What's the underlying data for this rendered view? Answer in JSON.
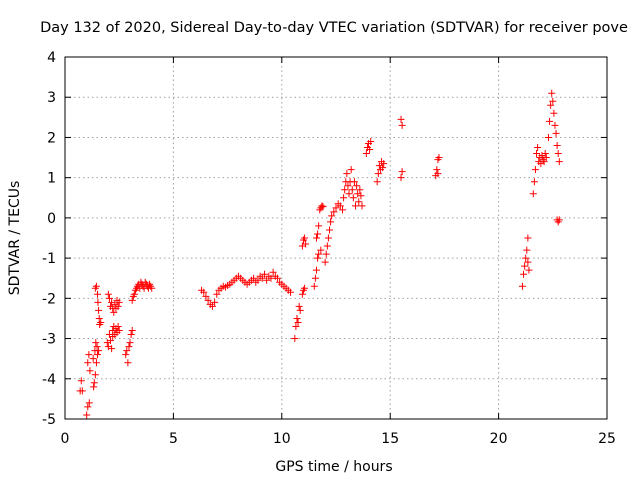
{
  "chart_data": {
    "type": "scatter",
    "title": "Day 132 of 2020, Sidereal Day-to-day VTEC variation (SDTVAR) for receiver pove",
    "xlabel": "GPS time / hours",
    "ylabel": "SDTVAR / TECUs",
    "xlim": [
      0,
      25
    ],
    "ylim": [
      -5,
      4
    ],
    "grid": true,
    "marker": "+",
    "color": "#ff0000",
    "xticks": [
      0,
      5,
      10,
      15,
      20,
      25
    ],
    "yticks": [
      -5,
      -4,
      -3,
      -2,
      -1,
      0,
      1,
      2,
      3,
      4
    ],
    "series": [
      {
        "name": "SDTVAR",
        "segments": [
          [
            [
              0.7,
              -4.3
            ],
            [
              0.75,
              -4.05
            ],
            [
              0.8,
              -4.3
            ]
          ],
          [
            [
              1.0,
              -4.9
            ],
            [
              1.05,
              -4.7
            ],
            [
              1.05,
              -3.6
            ],
            [
              1.1,
              -3.4
            ],
            [
              1.12,
              -4.6
            ],
            [
              1.15,
              -3.8
            ]
          ],
          [
            [
              1.3,
              -3.5
            ],
            [
              1.32,
              -4.2
            ],
            [
              1.35,
              -4.1
            ],
            [
              1.38,
              -3.3
            ],
            [
              1.4,
              -3.9
            ],
            [
              1.42,
              -3.1
            ],
            [
              1.45,
              -3.6
            ],
            [
              1.48,
              -3.2
            ],
            [
              1.5,
              -3.4
            ],
            [
              1.55,
              -3.3
            ]
          ],
          [
            [
              1.4,
              -1.75
            ],
            [
              1.45,
              -1.7
            ],
            [
              1.5,
              -1.9
            ],
            [
              1.52,
              -2.1
            ],
            [
              1.55,
              -2.3
            ],
            [
              1.58,
              -2.5
            ],
            [
              1.6,
              -2.65
            ],
            [
              1.65,
              -2.6
            ]
          ],
          [
            [
              1.95,
              -3.1
            ],
            [
              2.0,
              -3.2
            ],
            [
              2.05,
              -2.9
            ],
            [
              2.1,
              -3.05
            ],
            [
              2.15,
              -3.25
            ],
            [
              2.2,
              -2.95
            ]
          ],
          [
            [
              2.0,
              -1.9
            ],
            [
              2.05,
              -2.0
            ],
            [
              2.1,
              -2.2
            ],
            [
              2.15,
              -2.1
            ],
            [
              2.2,
              -2.25
            ],
            [
              2.25,
              -2.35
            ],
            [
              2.3,
              -2.15
            ],
            [
              2.35,
              -2.25
            ],
            [
              2.4,
              -2.05
            ],
            [
              2.45,
              -2.2
            ],
            [
              2.5,
              -2.1
            ]
          ],
          [
            [
              2.2,
              -2.8
            ],
            [
              2.25,
              -2.7
            ],
            [
              2.3,
              -2.9
            ],
            [
              2.35,
              -2.75
            ],
            [
              2.4,
              -2.85
            ],
            [
              2.45,
              -2.7
            ],
            [
              2.5,
              -2.8
            ]
          ],
          [
            [
              2.8,
              -3.4
            ],
            [
              2.85,
              -3.3
            ],
            [
              2.9,
              -3.6
            ],
            [
              2.95,
              -3.2
            ],
            [
              3.0,
              -3.1
            ],
            [
              3.05,
              -2.9
            ],
            [
              3.1,
              -2.8
            ]
          ],
          [
            [
              3.1,
              -2.05
            ],
            [
              3.15,
              -1.95
            ],
            [
              3.2,
              -1.9
            ],
            [
              3.25,
              -1.8
            ],
            [
              3.3,
              -1.75
            ],
            [
              3.35,
              -1.7
            ],
            [
              3.4,
              -1.65
            ],
            [
              3.45,
              -1.75
            ],
            [
              3.5,
              -1.6
            ],
            [
              3.55,
              -1.65
            ],
            [
              3.6,
              -1.7
            ],
            [
              3.65,
              -1.75
            ],
            [
              3.7,
              -1.6
            ],
            [
              3.75,
              -1.65
            ],
            [
              3.8,
              -1.7
            ],
            [
              3.85,
              -1.75
            ],
            [
              3.9,
              -1.65
            ],
            [
              3.95,
              -1.7
            ],
            [
              4.0,
              -1.75
            ]
          ],
          [
            [
              6.3,
              -1.8
            ],
            [
              6.4,
              -1.85
            ],
            [
              6.5,
              -1.95
            ],
            [
              6.6,
              -2.05
            ],
            [
              6.7,
              -2.15
            ],
            [
              6.8,
              -2.2
            ],
            [
              6.9,
              -2.1
            ],
            [
              7.0,
              -1.9
            ],
            [
              7.1,
              -1.8
            ],
            [
              7.2,
              -1.75
            ],
            [
              7.3,
              -1.7
            ],
            [
              7.4,
              -1.72
            ],
            [
              7.5,
              -1.68
            ],
            [
              7.6,
              -1.65
            ],
            [
              7.7,
              -1.6
            ],
            [
              7.8,
              -1.55
            ],
            [
              7.9,
              -1.5
            ],
            [
              8.0,
              -1.45
            ],
            [
              8.1,
              -1.5
            ],
            [
              8.2,
              -1.55
            ],
            [
              8.3,
              -1.6
            ],
            [
              8.4,
              -1.65
            ],
            [
              8.5,
              -1.6
            ],
            [
              8.6,
              -1.55
            ],
            [
              8.7,
              -1.5
            ],
            [
              8.8,
              -1.6
            ],
            [
              8.9,
              -1.55
            ],
            [
              9.0,
              -1.45
            ],
            [
              9.1,
              -1.5
            ],
            [
              9.2,
              -1.4
            ],
            [
              9.3,
              -1.55
            ],
            [
              9.4,
              -1.45
            ],
            [
              9.5,
              -1.5
            ],
            [
              9.6,
              -1.35
            ],
            [
              9.7,
              -1.45
            ],
            [
              9.8,
              -1.5
            ],
            [
              9.9,
              -1.6
            ],
            [
              10.0,
              -1.65
            ],
            [
              10.1,
              -1.7
            ],
            [
              10.2,
              -1.75
            ],
            [
              10.3,
              -1.8
            ],
            [
              10.4,
              -1.85
            ]
          ],
          [
            [
              10.6,
              -3.0
            ],
            [
              10.65,
              -2.7
            ],
            [
              10.7,
              -2.5
            ],
            [
              10.75,
              -2.6
            ],
            [
              10.8,
              -2.2
            ],
            [
              10.85,
              -2.3
            ]
          ],
          [
            [
              10.95,
              -1.9
            ],
            [
              11.0,
              -1.8
            ],
            [
              11.05,
              -1.75
            ]
          ],
          [
            [
              10.95,
              -0.7
            ],
            [
              11.0,
              -0.55
            ],
            [
              11.05,
              -0.5
            ],
            [
              11.1,
              -0.65
            ]
          ],
          [
            [
              11.5,
              -1.7
            ],
            [
              11.55,
              -1.5
            ],
            [
              11.6,
              -1.3
            ],
            [
              11.65,
              -1.0
            ],
            [
              11.7,
              -0.9
            ],
            [
              11.8,
              -0.8
            ]
          ],
          [
            [
              11.6,
              -0.5
            ],
            [
              11.65,
              -0.4
            ],
            [
              11.7,
              -0.2
            ],
            [
              11.75,
              0.2
            ],
            [
              11.8,
              0.25
            ],
            [
              11.85,
              0.3
            ],
            [
              11.9,
              0.28
            ]
          ],
          [
            [
              12.0,
              -1.1
            ],
            [
              12.05,
              -0.9
            ],
            [
              12.1,
              -0.7
            ],
            [
              12.15,
              -0.5
            ],
            [
              12.2,
              -0.3
            ],
            [
              12.25,
              -0.1
            ],
            [
              12.3,
              0.05
            ],
            [
              12.4,
              0.15
            ],
            [
              12.5,
              0.25
            ],
            [
              12.6,
              0.35
            ],
            [
              12.7,
              0.3
            ]
          ],
          [
            [
              12.8,
              0.2
            ],
            [
              12.85,
              0.5
            ],
            [
              12.9,
              0.7
            ],
            [
              12.95,
              0.9
            ],
            [
              13.0,
              1.1
            ],
            [
              13.05,
              0.8
            ],
            [
              13.1,
              0.6
            ],
            [
              13.15,
              0.9
            ],
            [
              13.2,
              1.2
            ],
            [
              13.25,
              0.7
            ],
            [
              13.3,
              0.5
            ],
            [
              13.35,
              0.9
            ],
            [
              13.4,
              0.3
            ],
            [
              13.45,
              0.8
            ],
            [
              13.5,
              0.6
            ],
            [
              13.55,
              0.4
            ],
            [
              13.6,
              0.7
            ],
            [
              13.65,
              0.55
            ],
            [
              13.7,
              0.3
            ]
          ],
          [
            [
              13.9,
              1.6
            ],
            [
              13.95,
              1.75
            ],
            [
              14.0,
              1.85
            ],
            [
              14.05,
              1.7
            ],
            [
              14.1,
              1.9
            ]
          ],
          [
            [
              14.4,
              0.9
            ],
            [
              14.45,
              1.1
            ],
            [
              14.5,
              1.3
            ],
            [
              14.55,
              1.2
            ],
            [
              14.6,
              1.4
            ],
            [
              14.65,
              1.25
            ],
            [
              14.7,
              1.35
            ]
          ],
          [
            [
              15.5,
              2.45
            ],
            [
              15.55,
              2.3
            ],
            [
              15.5,
              1.0
            ],
            [
              15.55,
              1.15
            ]
          ],
          [
            [
              17.1,
              1.05
            ],
            [
              17.15,
              1.2
            ],
            [
              17.2,
              1.45
            ],
            [
              17.25,
              1.5
            ],
            [
              17.2,
              1.1
            ]
          ],
          [
            [
              21.1,
              -1.7
            ],
            [
              21.15,
              -1.4
            ],
            [
              21.2,
              -1.2
            ],
            [
              21.25,
              -1.0
            ],
            [
              21.3,
              -0.8
            ],
            [
              21.35,
              -0.5
            ],
            [
              21.4,
              -1.3
            ],
            [
              21.35,
              -1.1
            ]
          ],
          [
            [
              21.6,
              0.6
            ],
            [
              21.65,
              0.9
            ],
            [
              21.7,
              1.2
            ],
            [
              21.75,
              1.6
            ],
            [
              21.8,
              1.75
            ],
            [
              21.85,
              1.4
            ],
            [
              21.9,
              1.5
            ],
            [
              21.95,
              1.35
            ],
            [
              22.0,
              1.55
            ],
            [
              22.05,
              1.45
            ],
            [
              22.1,
              1.4
            ],
            [
              22.15,
              1.6
            ],
            [
              22.2,
              1.5
            ]
          ],
          [
            [
              22.3,
              2.0
            ],
            [
              22.35,
              2.4
            ],
            [
              22.4,
              2.8
            ],
            [
              22.45,
              3.1
            ],
            [
              22.5,
              2.9
            ],
            [
              22.55,
              2.6
            ],
            [
              22.6,
              2.3
            ],
            [
              22.65,
              2.1
            ],
            [
              22.7,
              1.8
            ],
            [
              22.75,
              1.6
            ],
            [
              22.8,
              1.4
            ]
          ],
          [
            [
              22.7,
              -0.05
            ],
            [
              22.75,
              -0.1
            ],
            [
              22.8,
              -0.05
            ]
          ]
        ]
      }
    ]
  }
}
